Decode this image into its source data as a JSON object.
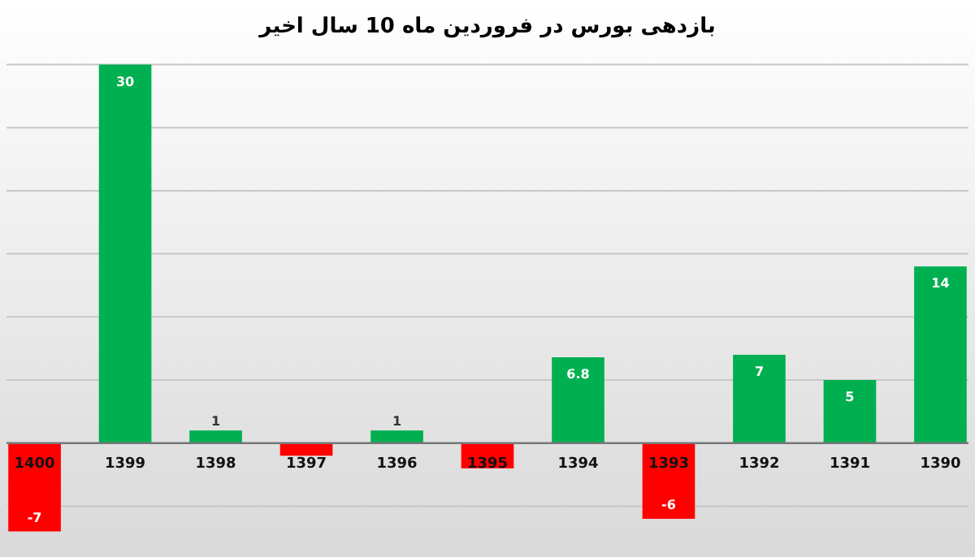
{
  "chart_data": {
    "type": "bar",
    "title": "بازدهی بورس در فروردین ماه 10 سال اخیر",
    "categories": [
      "1400",
      "1399",
      "1398",
      "1397",
      "1396",
      "1395",
      "1394",
      "1393",
      "1392",
      "1391",
      "1390"
    ],
    "values": [
      -7,
      30,
      1,
      -1,
      1,
      -2,
      6.8,
      -6,
      7,
      5,
      14
    ],
    "colors": [
      "#ff0000",
      "#00b050",
      "#00b050",
      "#ff0000",
      "#00b050",
      "#ff0000",
      "#00b050",
      "#ff0000",
      "#00b050",
      "#00b050",
      "#00b050"
    ],
    "value_labels": [
      "-7",
      "30",
      "1",
      null,
      "1",
      null,
      "6.8",
      "-6",
      "7",
      "5",
      "14"
    ],
    "yticks": [
      {
        "value": -5,
        "label": null
      },
      {
        "value": 5,
        "label": null
      },
      {
        "value": 10,
        "label": null
      },
      {
        "value": 15,
        "label": null
      },
      {
        "value": 20,
        "label": null
      },
      {
        "value": 25,
        "label": null
      },
      {
        "value": 30,
        "label": null
      }
    ],
    "tick_labels": "x",
    "grid": "y"
  }
}
